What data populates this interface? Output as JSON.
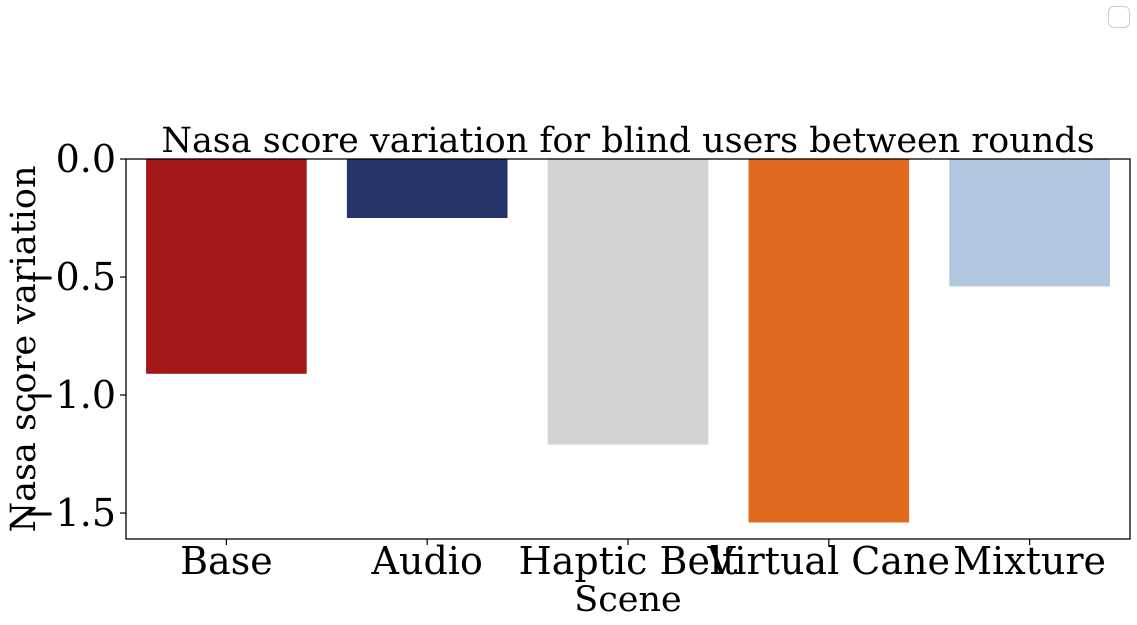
{
  "chart_data": {
    "type": "bar",
    "title": "Nasa score variation for blind users between rounds",
    "xlabel": "Scene",
    "ylabel": "Nasa score variation",
    "categories": [
      "Base",
      "Audio",
      "Haptic Belt",
      "Virtual Cane",
      "Mixture"
    ],
    "values": [
      -0.91,
      -0.25,
      -1.21,
      -1.54,
      -0.54
    ],
    "colors": [
      "#a31919",
      "#25356b",
      "#d3d3d3",
      "#e06b20",
      "#b2c8e0"
    ],
    "ylim": [
      -1.61,
      0.0
    ],
    "yticks": [
      0.0,
      -0.5,
      -1.0,
      -1.5
    ],
    "ytick_labels": [
      "0.0",
      "−0.5",
      "−1.0",
      "−1.5"
    ],
    "grid": false,
    "legend": {
      "placement": "top-right",
      "entries": []
    }
  }
}
